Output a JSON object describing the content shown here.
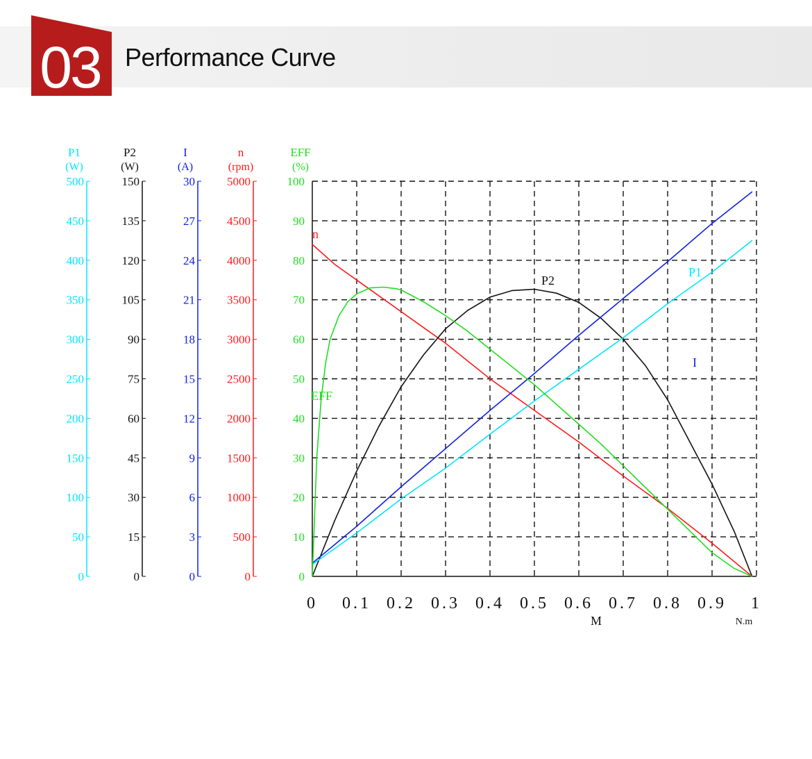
{
  "header": {
    "number": "03",
    "title": "Performance Curve",
    "badge_color": "#b71c1c"
  },
  "chart_data": {
    "type": "line",
    "x_tick_labels": [
      "0",
      "0.1",
      "0.2",
      "0.3",
      "0.4",
      "0.5",
      "0.6",
      "0.7",
      "0.8",
      "0.9",
      "1"
    ],
    "xlabel": "M",
    "x_unit": "N.m",
    "xlim": [
      0,
      1
    ],
    "grid": true,
    "axes": [
      {
        "key": "P1",
        "name": "P1",
        "unit": "(W)",
        "color": "#00e5ff",
        "range": [
          0,
          500
        ],
        "ticks": [
          "0",
          "50",
          "100",
          "150",
          "200",
          "250",
          "300",
          "350",
          "400",
          "450",
          "500"
        ]
      },
      {
        "key": "P2",
        "name": "P2",
        "unit": "(W)",
        "color": "#111111",
        "range": [
          0,
          150
        ],
        "ticks": [
          "0",
          "15",
          "30",
          "45",
          "60",
          "75",
          "90",
          "105",
          "120",
          "135",
          "150"
        ]
      },
      {
        "key": "I",
        "name": "I",
        "unit": "(A)",
        "color": "#1020e0",
        "range": [
          0,
          30
        ],
        "ticks": [
          "0",
          "3",
          "6",
          "9",
          "12",
          "15",
          "18",
          "21",
          "24",
          "27",
          "30"
        ]
      },
      {
        "key": "n",
        "name": "n",
        "unit": "(rpm)",
        "color": "#ff1a1a",
        "range": [
          0,
          5000
        ],
        "ticks": [
          "0",
          "500",
          "1000",
          "1500",
          "2000",
          "2500",
          "3000",
          "3500",
          "4000",
          "4500",
          "5000"
        ]
      },
      {
        "key": "EFF",
        "name": "EFF",
        "unit": "(%)",
        "color": "#22dd22",
        "range": [
          0,
          100
        ],
        "ticks": [
          "0",
          "10",
          "20",
          "30",
          "40",
          "50",
          "60",
          "70",
          "80",
          "90",
          "100"
        ]
      }
    ],
    "series": [
      {
        "name": "n",
        "axis": "n",
        "color": "#ff1a1a",
        "x": [
          0,
          0.05,
          0.1,
          0.2,
          0.3,
          0.4,
          0.5,
          0.6,
          0.7,
          0.8,
          0.9,
          0.99
        ],
        "y": [
          4200,
          3950,
          3750,
          3350,
          2950,
          2500,
          2100,
          1700,
          1270,
          860,
          420,
          0
        ]
      },
      {
        "name": "P2",
        "axis": "P2",
        "color": "#111111",
        "x": [
          0,
          0.05,
          0.1,
          0.15,
          0.2,
          0.25,
          0.3,
          0.35,
          0.4,
          0.45,
          0.5,
          0.55,
          0.6,
          0.65,
          0.7,
          0.75,
          0.8,
          0.85,
          0.9,
          0.95,
          0.99
        ],
        "y": [
          0,
          21,
          40,
          57,
          72,
          84,
          94,
          101,
          106,
          108.5,
          109,
          107.5,
          104,
          98,
          90,
          80,
          67,
          51,
          35,
          17,
          0
        ]
      },
      {
        "name": "P1",
        "axis": "P1",
        "color": "#00e5ff",
        "x": [
          0,
          0.1,
          0.2,
          0.3,
          0.4,
          0.5,
          0.6,
          0.7,
          0.8,
          0.9,
          0.99
        ],
        "y": [
          15,
          55,
          98,
          137,
          180,
          222,
          262,
          302,
          345,
          385,
          425
        ]
      },
      {
        "name": "I",
        "axis": "I",
        "color": "#1020e0",
        "x": [
          0,
          0.1,
          0.2,
          0.3,
          0.4,
          0.5,
          0.6,
          0.7,
          0.8,
          0.9,
          0.99
        ],
        "y": [
          1,
          3.8,
          6.8,
          9.7,
          12.6,
          15.4,
          18.3,
          21.1,
          23.9,
          26.8,
          29.2
        ]
      },
      {
        "name": "EFF",
        "axis": "EFF",
        "color": "#22dd22",
        "x": [
          0,
          0.01,
          0.02,
          0.03,
          0.04,
          0.06,
          0.08,
          0.1,
          0.13,
          0.16,
          0.19,
          0.2,
          0.25,
          0.3,
          0.35,
          0.4,
          0.45,
          0.5,
          0.55,
          0.6,
          0.65,
          0.7,
          0.75,
          0.8,
          0.85,
          0.9,
          0.95,
          0.99
        ],
        "y": [
          0,
          30,
          45,
          54,
          60,
          66,
          69.5,
          71.5,
          73,
          73.2,
          72.8,
          72.5,
          69.5,
          66,
          62,
          57.5,
          53,
          48.5,
          43.5,
          38.5,
          33.5,
          28,
          22.5,
          17,
          11.5,
          6,
          2,
          0
        ]
      }
    ]
  }
}
